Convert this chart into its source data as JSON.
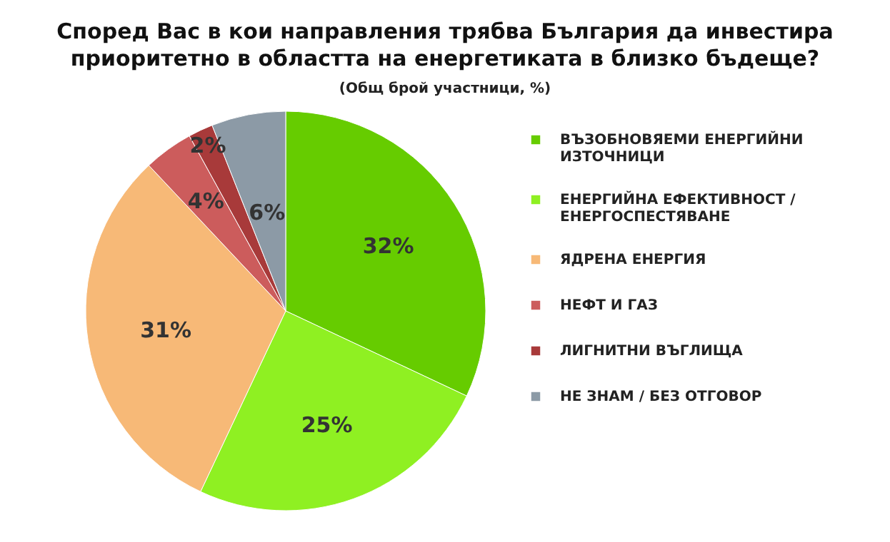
{
  "chart_data": {
    "type": "pie",
    "title": "Според Вас в кои направления трябва България да инвестира приоритетно в областта на енергетиката в близко бъдеще?",
    "subtitle": "(Общ брой участници, %)",
    "categories": [
      "ВЪЗОБНОВЯЕМИ ЕНЕРГИЙНИ ИЗТОЧНИЦИ",
      "ЕНЕРГИЙНА ЕФЕКТИВНОСТ / ЕНЕРГОСПЕСТЯВАНЕ",
      "ЯДРЕНА ЕНЕРГИЯ",
      "НЕФТ И ГАЗ",
      "ЛИГНИТНИ ВЪГЛИЩА",
      "НЕ ЗНАМ / БЕЗ ОТГОВОР"
    ],
    "values": [
      32,
      25,
      31,
      4,
      2,
      6
    ],
    "value_labels": [
      "32%",
      "25%",
      "31%",
      "4%",
      "2%",
      "6%"
    ],
    "colors": [
      "#66cc00",
      "#8ff022",
      "#f7b977",
      "#cc5c5c",
      "#a83a3a",
      "#8c9aa6"
    ],
    "legend": "right"
  }
}
